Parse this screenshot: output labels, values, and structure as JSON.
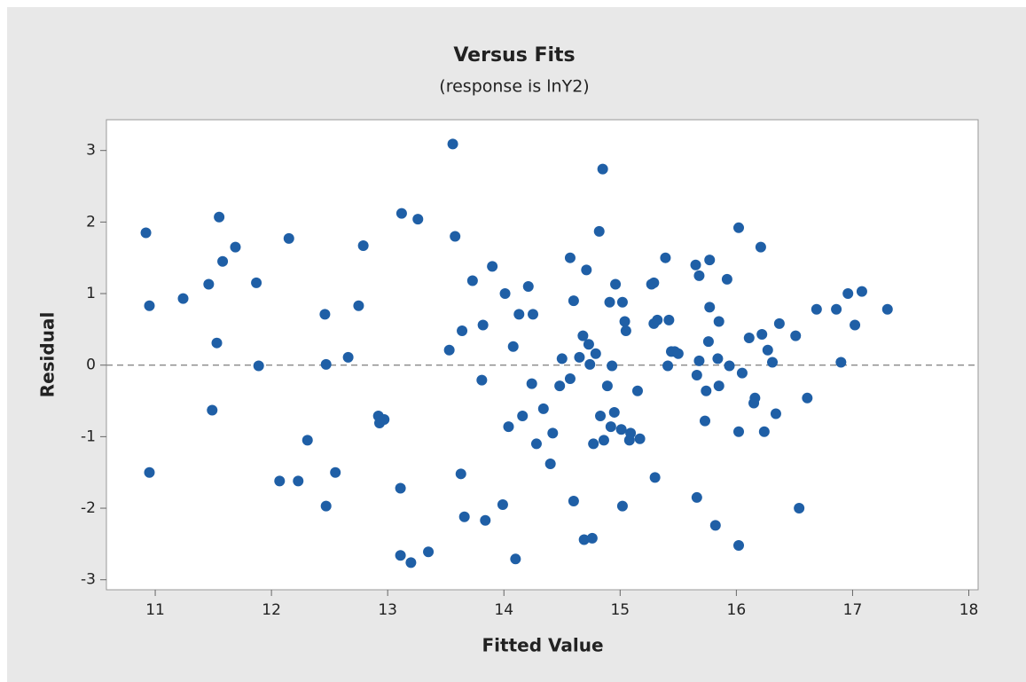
{
  "chart_data": {
    "type": "scatter",
    "title": "Versus Fits",
    "subtitle": "(response is lnY2)",
    "x_label": "Fitted Value",
    "y_label": "Residual",
    "color": "#1f5fa6",
    "reference_line": 0,
    "xlim": [
      10.58,
      18.08
    ],
    "ylim": [
      -3.14,
      3.43
    ],
    "xticks": [
      11,
      12,
      13,
      14,
      15,
      16,
      17,
      18
    ],
    "yticks": [
      -3,
      -2,
      -1,
      0,
      1,
      2,
      3
    ],
    "x": [
      10.92,
      10.95,
      10.95,
      11.24,
      11.46,
      11.49,
      11.53,
      11.55,
      11.58,
      11.69,
      11.87,
      11.89,
      12.07,
      12.15,
      12.23,
      12.31,
      12.46,
      12.47,
      12.47,
      12.55,
      12.66,
      12.75,
      12.79,
      12.92,
      12.93,
      12.97,
      13.11,
      13.11,
      13.12,
      13.2,
      13.26,
      13.35,
      13.53,
      13.56,
      13.58,
      13.63,
      13.64,
      13.66,
      13.73,
      13.81,
      13.82,
      13.84,
      13.9,
      13.99,
      14.01,
      14.04,
      14.08,
      14.1,
      14.13,
      14.16,
      14.21,
      14.24,
      14.25,
      14.28,
      14.34,
      14.4,
      14.42,
      14.48,
      14.5,
      14.57,
      14.57,
      14.6,
      14.6,
      14.65,
      14.68,
      14.69,
      14.71,
      14.73,
      14.74,
      14.76,
      14.77,
      14.79,
      14.82,
      14.83,
      14.85,
      14.86,
      14.89,
      14.91,
      14.92,
      14.93,
      14.95,
      14.96,
      15.01,
      15.02,
      15.02,
      15.04,
      15.05,
      15.08,
      15.09,
      15.15,
      15.17,
      15.27,
      15.29,
      15.29,
      15.3,
      15.32,
      15.39,
      15.41,
      15.42,
      15.44,
      15.47,
      15.5,
      15.65,
      15.66,
      15.66,
      15.68,
      15.68,
      15.73,
      15.74,
      15.76,
      15.77,
      15.77,
      15.82,
      15.84,
      15.85,
      15.85,
      15.92,
      15.94,
      16.02,
      16.02,
      16.02,
      16.05,
      16.11,
      16.15,
      16.16,
      16.21,
      16.22,
      16.24,
      16.27,
      16.31,
      16.34,
      16.37,
      16.51,
      16.54,
      16.61,
      16.69,
      16.86,
      16.9,
      16.96,
      17.02,
      17.08,
      17.3
    ],
    "values": [
      1.85,
      0.83,
      -1.5,
      0.93,
      1.13,
      -0.63,
      0.31,
      2.07,
      1.45,
      1.65,
      1.15,
      -0.01,
      -1.62,
      1.77,
      -1.62,
      -1.05,
      0.71,
      0.01,
      -1.97,
      -1.5,
      0.11,
      0.83,
      1.67,
      -0.71,
      -0.81,
      -0.76,
      -1.72,
      -2.66,
      2.12,
      -2.76,
      2.04,
      -2.61,
      0.21,
      3.09,
      1.8,
      -1.52,
      0.48,
      -2.12,
      1.18,
      -0.21,
      0.56,
      -2.17,
      1.38,
      -1.95,
      1.0,
      -0.86,
      0.26,
      -2.71,
      0.71,
      -0.71,
      1.1,
      -0.26,
      0.71,
      -1.1,
      -0.61,
      -1.38,
      -0.95,
      -0.29,
      0.09,
      -0.19,
      1.5,
      0.9,
      -1.9,
      0.11,
      0.41,
      -2.44,
      1.33,
      0.29,
      0.01,
      -2.42,
      -1.1,
      0.16,
      1.87,
      -0.71,
      2.74,
      -1.05,
      -0.29,
      0.88,
      -0.86,
      -0.01,
      -0.66,
      1.13,
      -0.9,
      0.88,
      -1.97,
      0.61,
      0.48,
      -1.05,
      -0.95,
      -0.36,
      -1.03,
      1.13,
      1.15,
      0.58,
      -1.57,
      0.63,
      1.5,
      -0.01,
      0.63,
      0.19,
      0.19,
      0.16,
      1.4,
      -1.85,
      -0.14,
      1.25,
      0.06,
      -0.78,
      -0.36,
      0.33,
      1.47,
      0.81,
      -2.24,
      0.09,
      0.61,
      -0.29,
      1.2,
      -0.01,
      -0.93,
      1.92,
      -2.52,
      -0.11,
      0.38,
      -0.53,
      -0.46,
      1.65,
      0.43,
      -0.93,
      0.21,
      0.04,
      -0.68,
      0.58,
      0.41,
      -2.0,
      -0.46,
      0.78,
      0.78,
      0.04,
      1.0,
      0.56,
      1.03,
      0.78
    ]
  }
}
